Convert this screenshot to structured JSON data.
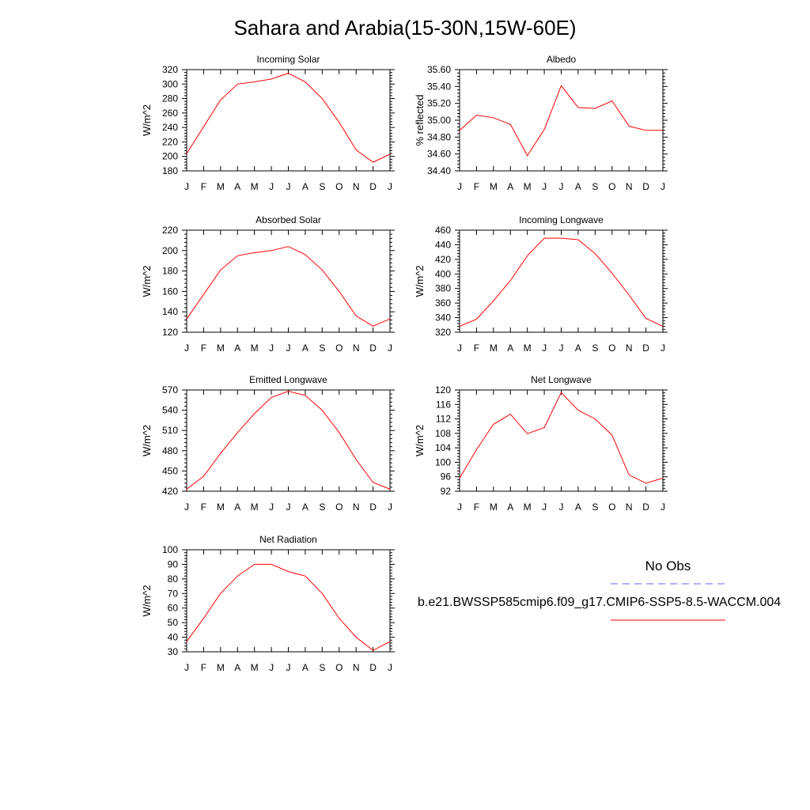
{
  "title": "Sahara and Arabia(15-30N,15W-60E)",
  "legend": {
    "obs_label": "No Obs",
    "obs_color": "#6666ff",
    "case_label": "b.e21.BWSSP585cmip6.f09_g17.CMIP6-SSP5-8.5-WACCM.004",
    "case_color": "#ff0000"
  },
  "chart_data": [
    {
      "type": "line",
      "title": "Incoming Solar",
      "ylabel": "W/m^2",
      "x": [
        "J",
        "F",
        "M",
        "A",
        "M",
        "J",
        "J",
        "A",
        "S",
        "O",
        "N",
        "D",
        "J"
      ],
      "ylim": [
        180,
        320
      ],
      "yticks": [
        "180",
        "200",
        "220",
        "240",
        "260",
        "280",
        "300",
        "320"
      ],
      "series": [
        {
          "color": "#ff0000",
          "values": [
            204,
            241,
            278,
            300,
            303,
            307,
            315,
            303,
            280,
            247,
            209,
            192,
            203
          ]
        }
      ]
    },
    {
      "type": "line",
      "title": "Albedo",
      "ylabel": "% reflected",
      "x": [
        "J",
        "F",
        "M",
        "A",
        "M",
        "J",
        "J",
        "A",
        "S",
        "O",
        "N",
        "D",
        "J"
      ],
      "ylim": [
        34.4,
        35.6
      ],
      "yticks": [
        "34.40",
        "34.60",
        "34.80",
        "35.00",
        "35.20",
        "35.40",
        "35.60"
      ],
      "series": [
        {
          "color": "#ff0000",
          "values": [
            34.88,
            35.06,
            35.03,
            34.95,
            34.58,
            34.89,
            35.41,
            35.15,
            35.14,
            35.23,
            34.93,
            34.88,
            34.88
          ]
        }
      ]
    },
    {
      "type": "line",
      "title": "Absorbed Solar",
      "ylabel": "W/m^2",
      "x": [
        "J",
        "F",
        "M",
        "A",
        "M",
        "J",
        "J",
        "A",
        "S",
        "O",
        "N",
        "D",
        "J"
      ],
      "ylim": [
        120,
        220
      ],
      "yticks": [
        "120",
        "140",
        "160",
        "180",
        "200",
        "220"
      ],
      "series": [
        {
          "color": "#ff0000",
          "values": [
            133,
            157,
            181,
            195,
            198,
            200,
            204,
            196,
            181,
            160,
            136,
            126,
            133
          ]
        }
      ]
    },
    {
      "type": "line",
      "title": "Incoming Longwave",
      "ylabel": "W/m^2",
      "x": [
        "J",
        "F",
        "M",
        "A",
        "M",
        "J",
        "J",
        "A",
        "S",
        "O",
        "N",
        "D",
        "J"
      ],
      "ylim": [
        320,
        460
      ],
      "yticks": [
        "320",
        "340",
        "360",
        "380",
        "400",
        "420",
        "440",
        "460"
      ],
      "series": [
        {
          "color": "#ff0000",
          "values": [
            328,
            338,
            363,
            391,
            425,
            449,
            449,
            447,
            428,
            401,
            371,
            339,
            328
          ]
        }
      ]
    },
    {
      "type": "line",
      "title": "Emitted Longwave",
      "ylabel": "W/m^2",
      "x": [
        "J",
        "F",
        "M",
        "A",
        "M",
        "J",
        "J",
        "A",
        "S",
        "O",
        "N",
        "D",
        "J"
      ],
      "ylim": [
        420,
        570
      ],
      "yticks": [
        "420",
        "450",
        "480",
        "510",
        "540",
        "570"
      ],
      "series": [
        {
          "color": "#ff0000",
          "values": [
            423,
            442,
            476,
            507,
            535,
            559,
            568,
            562,
            540,
            507,
            467,
            433,
            423
          ]
        }
      ]
    },
    {
      "type": "line",
      "title": "Net Longwave",
      "ylabel": "W/m^2",
      "x": [
        "J",
        "F",
        "M",
        "A",
        "M",
        "J",
        "J",
        "A",
        "S",
        "O",
        "N",
        "D",
        "J"
      ],
      "ylim": [
        92,
        120
      ],
      "yticks": [
        "92",
        "96",
        "100",
        "104",
        "108",
        "112",
        "116",
        "120"
      ],
      "series": [
        {
          "color": "#ff0000",
          "values": [
            95.6,
            103.5,
            110.5,
            113.3,
            107.9,
            109.6,
            119.3,
            114.4,
            112.0,
            107.5,
            96.5,
            94.2,
            95.6
          ]
        }
      ]
    },
    {
      "type": "line",
      "title": "Net Radiation",
      "ylabel": "W/m^2",
      "x": [
        "J",
        "F",
        "M",
        "A",
        "M",
        "J",
        "J",
        "A",
        "S",
        "O",
        "N",
        "D",
        "J"
      ],
      "ylim": [
        30,
        100
      ],
      "yticks": [
        "30",
        "40",
        "50",
        "60",
        "70",
        "80",
        "90",
        "100"
      ],
      "series": [
        {
          "color": "#ff0000",
          "values": [
            37,
            53,
            70,
            82,
            90,
            90,
            85,
            82,
            70,
            53,
            40,
            31,
            37
          ]
        }
      ]
    }
  ]
}
